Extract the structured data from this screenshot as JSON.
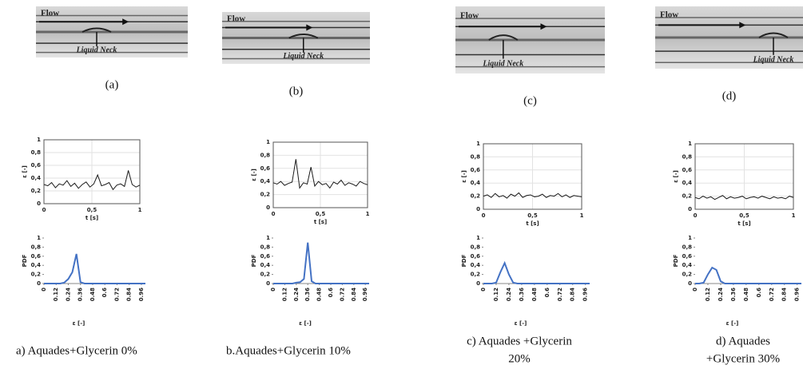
{
  "photos": [
    {
      "flow": "Flow",
      "neck": "Liquid Neck",
      "label": "(a)"
    },
    {
      "flow": "Flow",
      "neck": "Liquid Neck",
      "label": "(b)"
    },
    {
      "flow": "Flow",
      "neck": "Liquid Neck",
      "label": "(c)"
    },
    {
      "flow": "Flow",
      "neck": "Liquid Neck",
      "label": "(d)"
    }
  ],
  "captions": [
    [
      "a)  Aquades+Glycerin 0%"
    ],
    [
      "b.Aquades+Glycerin 10%"
    ],
    [
      "c)  Aquades +Glycerin",
      "20%"
    ],
    [
      "d)  Aquades",
      "+Glycerin 30%"
    ]
  ],
  "chart_data": [
    {
      "type": "line",
      "xlabel": "t [s]",
      "ylabel": "ε [-]",
      "color": "#1a1a1a",
      "grid": true,
      "x": [
        0,
        0.04,
        0.08,
        0.12,
        0.16,
        0.2,
        0.24,
        0.28,
        0.32,
        0.36,
        0.4,
        0.44,
        0.48,
        0.52,
        0.56,
        0.6,
        0.64,
        0.68,
        0.72,
        0.76,
        0.8,
        0.84,
        0.88,
        0.92,
        0.96,
        1
      ],
      "values": [
        0.3,
        0.28,
        0.33,
        0.25,
        0.31,
        0.29,
        0.36,
        0.27,
        0.32,
        0.24,
        0.3,
        0.34,
        0.26,
        0.31,
        0.45,
        0.28,
        0.3,
        0.33,
        0.22,
        0.29,
        0.31,
        0.27,
        0.52,
        0.3,
        0.26,
        0.29
      ],
      "xlim": [
        0,
        1
      ],
      "xticks": [
        0,
        {
          "value": 0.5,
          "label": "0,5"
        },
        1
      ],
      "ylim": [
        0,
        1
      ],
      "yticks": [
        0,
        {
          "value": 0.2,
          "label": "0,2"
        },
        {
          "value": 0.4,
          "label": "0,4"
        },
        {
          "value": 0.6,
          "label": "0,6"
        },
        {
          "value": 0.8,
          "label": "0,8"
        },
        1
      ]
    },
    {
      "type": "line",
      "xlabel": "t [s]",
      "ylabel": "ε [-]",
      "color": "#1a1a1a",
      "grid": true,
      "x": [
        0,
        0.04,
        0.08,
        0.12,
        0.16,
        0.2,
        0.24,
        0.28,
        0.32,
        0.36,
        0.4,
        0.44,
        0.48,
        0.52,
        0.56,
        0.6,
        0.64,
        0.68,
        0.72,
        0.76,
        0.8,
        0.84,
        0.88,
        0.92,
        0.96,
        1
      ],
      "values": [
        0.38,
        0.36,
        0.4,
        0.34,
        0.37,
        0.39,
        0.74,
        0.3,
        0.38,
        0.36,
        0.62,
        0.33,
        0.4,
        0.35,
        0.37,
        0.3,
        0.39,
        0.36,
        0.42,
        0.34,
        0.38,
        0.36,
        0.33,
        0.4,
        0.37,
        0.35
      ],
      "xlim": [
        0,
        1
      ],
      "xticks": [
        0,
        {
          "value": 0.5,
          "label": "0,5"
        },
        1
      ],
      "ylim": [
        0,
        1
      ],
      "yticks": [
        0,
        {
          "value": 0.2,
          "label": "0,2"
        },
        {
          "value": 0.4,
          "label": "0,4"
        },
        {
          "value": 0.6,
          "label": "0,6"
        },
        {
          "value": 0.8,
          "label": "0,8"
        },
        1
      ]
    },
    {
      "type": "line",
      "xlabel": "t [s]",
      "ylabel": "ε [-]",
      "color": "#1a1a1a",
      "grid": true,
      "x": [
        0,
        0.04,
        0.08,
        0.12,
        0.16,
        0.2,
        0.24,
        0.28,
        0.32,
        0.36,
        0.4,
        0.44,
        0.48,
        0.52,
        0.56,
        0.6,
        0.64,
        0.68,
        0.72,
        0.76,
        0.8,
        0.84,
        0.88,
        0.92,
        0.96,
        1
      ],
      "values": [
        0.2,
        0.22,
        0.18,
        0.24,
        0.19,
        0.21,
        0.17,
        0.23,
        0.2,
        0.25,
        0.18,
        0.21,
        0.22,
        0.19,
        0.2,
        0.23,
        0.18,
        0.21,
        0.2,
        0.24,
        0.19,
        0.22,
        0.18,
        0.21,
        0.2,
        0.19
      ],
      "xlim": [
        0,
        1
      ],
      "xticks": [
        0,
        {
          "value": 0.5,
          "label": "0,5"
        },
        1
      ],
      "ylim": [
        0,
        1
      ],
      "yticks": [
        0,
        {
          "value": 0.2,
          "label": "0,2"
        },
        {
          "value": 0.4,
          "label": "0,4"
        },
        {
          "value": 0.6,
          "label": "0,6"
        },
        {
          "value": 0.8,
          "label": "0,8"
        },
        1
      ]
    },
    {
      "type": "line",
      "xlabel": "t [s]",
      "ylabel": "ε [-]",
      "color": "#1a1a1a",
      "grid": true,
      "x": [
        0,
        0.04,
        0.08,
        0.12,
        0.16,
        0.2,
        0.24,
        0.28,
        0.32,
        0.36,
        0.4,
        0.44,
        0.48,
        0.52,
        0.56,
        0.6,
        0.64,
        0.68,
        0.72,
        0.76,
        0.8,
        0.84,
        0.88,
        0.92,
        0.96,
        1
      ],
      "values": [
        0.18,
        0.16,
        0.2,
        0.17,
        0.19,
        0.15,
        0.18,
        0.21,
        0.16,
        0.19,
        0.17,
        0.18,
        0.2,
        0.16,
        0.18,
        0.19,
        0.17,
        0.2,
        0.18,
        0.16,
        0.19,
        0.17,
        0.18,
        0.16,
        0.2,
        0.18
      ],
      "xlim": [
        0,
        1
      ],
      "xticks": [
        0,
        {
          "value": 0.5,
          "label": "0,5"
        },
        1
      ],
      "ylim": [
        0,
        1
      ],
      "yticks": [
        0,
        {
          "value": 0.2,
          "label": "0,2"
        },
        {
          "value": 0.4,
          "label": "0,4"
        },
        {
          "value": 0.6,
          "label": "0,6"
        },
        {
          "value": 0.8,
          "label": "0,8"
        },
        1
      ]
    },
    {
      "type": "line",
      "xlabel": "ε [-]",
      "ylabel": "PDF",
      "color": "#4472c4",
      "grid": false,
      "x": [
        0,
        0.04,
        0.08,
        0.12,
        0.16,
        0.2,
        0.24,
        0.28,
        0.32,
        0.36,
        0.4,
        0.44,
        0.48,
        0.52,
        0.56,
        0.6,
        0.64,
        0.68,
        0.72,
        0.76,
        0.8,
        0.84,
        0.88,
        0.92,
        0.96,
        1
      ],
      "values": [
        0,
        0,
        0,
        0,
        0,
        0.02,
        0.1,
        0.25,
        0.65,
        0.03,
        0,
        0,
        0,
        0,
        0,
        0,
        0,
        0,
        0,
        0,
        0,
        0,
        0,
        0,
        0,
        0
      ],
      "xlim": [
        0,
        1
      ],
      "xticks": [
        0,
        0.12,
        0.24,
        0.36,
        0.48,
        0.6,
        0.72,
        0.84,
        0.96
      ],
      "ylim": [
        0,
        1
      ],
      "yticks": [
        0,
        {
          "value": 0.2,
          "label": "0,2"
        },
        {
          "value": 0.4,
          "label": "0,4"
        },
        {
          "value": 0.6,
          "label": "0,6"
        },
        {
          "value": 0.8,
          "label": "0,8"
        },
        1
      ]
    },
    {
      "type": "line",
      "xlabel": "ε [-]",
      "ylabel": "PDF",
      "color": "#4472c4",
      "grid": false,
      "x": [
        0,
        0.04,
        0.08,
        0.12,
        0.16,
        0.2,
        0.24,
        0.28,
        0.32,
        0.36,
        0.4,
        0.44,
        0.48,
        0.52,
        0.56,
        0.6,
        0.64,
        0.68,
        0.72,
        0.76,
        0.8,
        0.84,
        0.88,
        0.92,
        0.96,
        1
      ],
      "values": [
        0,
        0,
        0,
        0,
        0,
        0,
        0.02,
        0.03,
        0.1,
        0.9,
        0.05,
        0,
        0,
        0,
        0,
        0,
        0,
        0,
        0,
        0,
        0,
        0,
        0,
        0,
        0,
        0
      ],
      "xlim": [
        0,
        1
      ],
      "xticks": [
        0,
        0.12,
        0.24,
        0.36,
        0.48,
        0.6,
        0.72,
        0.84,
        0.96
      ],
      "ylim": [
        0,
        1
      ],
      "yticks": [
        0,
        {
          "value": 0.2,
          "label": "0,2"
        },
        {
          "value": 0.4,
          "label": "0,4"
        },
        {
          "value": 0.6,
          "label": "0,6"
        },
        {
          "value": 0.8,
          "label": "0,8"
        },
        1
      ]
    },
    {
      "type": "line",
      "xlabel": "ε [-]",
      "ylabel": "PDF",
      "color": "#4472c4",
      "grid": false,
      "x": [
        0,
        0.04,
        0.08,
        0.12,
        0.16,
        0.2,
        0.24,
        0.28,
        0.32,
        0.36,
        0.4,
        0.44,
        0.48,
        0.52,
        0.56,
        0.6,
        0.64,
        0.68,
        0.72,
        0.76,
        0.8,
        0.84,
        0.88,
        0.92,
        0.96,
        1
      ],
      "values": [
        0,
        0,
        0,
        0.02,
        0.25,
        0.45,
        0.2,
        0.02,
        0,
        0,
        0,
        0,
        0,
        0,
        0,
        0,
        0,
        0,
        0,
        0,
        0,
        0,
        0,
        0,
        0,
        0
      ],
      "xlim": [
        0,
        1
      ],
      "xticks": [
        0,
        0.12,
        0.24,
        0.36,
        0.48,
        0.6,
        0.72,
        0.84,
        0.96
      ],
      "ylim": [
        0,
        1
      ],
      "yticks": [
        0,
        {
          "value": 0.2,
          "label": "0,2"
        },
        {
          "value": 0.4,
          "label": "0,4"
        },
        {
          "value": 0.6,
          "label": "0,6"
        },
        {
          "value": 0.8,
          "label": "0,8"
        },
        1
      ]
    },
    {
      "type": "line",
      "xlabel": "ε [-]",
      "ylabel": "PDF",
      "color": "#4472c4",
      "grid": false,
      "x": [
        0,
        0.04,
        0.08,
        0.12,
        0.16,
        0.2,
        0.24,
        0.28,
        0.32,
        0.36,
        0.4,
        0.44,
        0.48,
        0.52,
        0.56,
        0.6,
        0.64,
        0.68,
        0.72,
        0.76,
        0.8,
        0.84,
        0.88,
        0.92,
        0.96,
        1
      ],
      "values": [
        0,
        0,
        0.02,
        0.2,
        0.35,
        0.3,
        0.05,
        0,
        0,
        0,
        0,
        0,
        0,
        0,
        0,
        0,
        0,
        0,
        0,
        0,
        0,
        0,
        0,
        0,
        0,
        0
      ],
      "xlim": [
        0,
        1
      ],
      "xticks": [
        0,
        0.12,
        0.24,
        0.36,
        0.48,
        0.6,
        0.72,
        0.84,
        0.96
      ],
      "ylim": [
        0,
        1
      ],
      "yticks": [
        0,
        {
          "value": 0.2,
          "label": "0,2"
        },
        {
          "value": 0.4,
          "label": "0,4"
        },
        {
          "value": 0.6,
          "label": "0,6"
        },
        {
          "value": 0.8,
          "label": "0,8"
        },
        1
      ]
    }
  ]
}
